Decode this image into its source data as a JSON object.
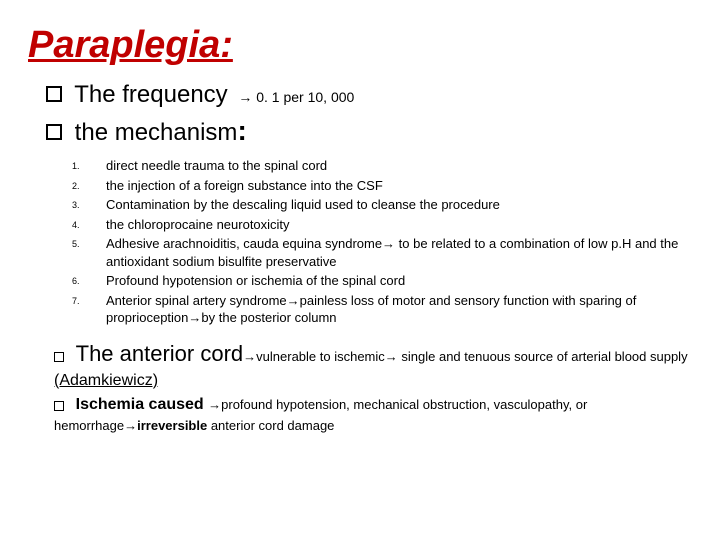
{
  "title": "Paraplegia:",
  "title_color": "#c00000",
  "line1": {
    "lead": "The",
    "word": "frequency",
    "tail": "→ 0. 1 per 10, 000"
  },
  "line2": {
    "lead": "the",
    "word": "mechanism",
    "colon": ":"
  },
  "mechanisms": [
    "direct needle trauma to the spinal cord",
    "the injection of a foreign substance into the CSF",
    "Contamination by the descaling liquid used to cleanse the procedure",
    "the chloroprocaine neurotoxicity",
    "Adhesive arachnoiditis, cauda equina syndrome→ to be related to a combination of low p.H and the antioxidant sodium bisulfite preservative",
    "Profound hypotension or ischemia of the spinal cord",
    "Anterior spinal artery syndrome→painless loss of motor and sensory function with sparing of proprioception→by the posterior column"
  ],
  "footer": {
    "p1_big": "The anterior cord",
    "p1_rest": "→vulnerable to ischemic→ single and tenuous source of arterial blood supply ",
    "p1_adamk": "(Adamkiewicz)",
    "p2_lead": "Ischemia caused ",
    "p2_mid": "→profound hypotension, mechanical obstruction, vasculopathy, or hemorrhage→",
    "p2_bold": "irreversible",
    "p2_end": " anterior cord damage"
  }
}
